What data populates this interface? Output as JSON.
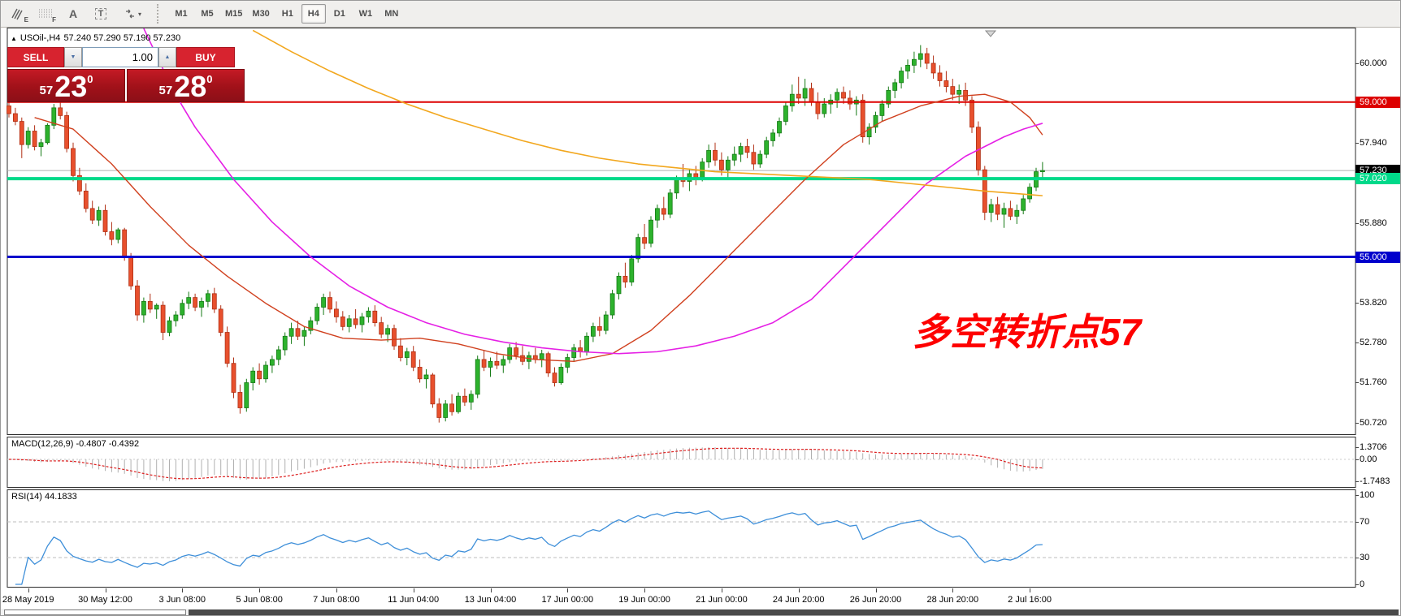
{
  "toolbar": {
    "icon_letters": {
      "e": "E",
      "f": "F",
      "a": "A",
      "t": "T"
    },
    "timeframes": [
      "M1",
      "M5",
      "M15",
      "M30",
      "H1",
      "H4",
      "D1",
      "W1",
      "MN"
    ],
    "active_timeframe": "H4"
  },
  "quote_bar": {
    "collapse_icon": "▲",
    "symbol": "USOil-,H4",
    "ohlc": "57.240 57.290 57.190 57.230"
  },
  "trade_panel": {
    "sell_label": "SELL",
    "buy_label": "BUY",
    "volume": "1.00",
    "spin_down": "▼",
    "spin_up": "▲",
    "sell_price_small": "57",
    "sell_price_big": "23",
    "sell_price_sup": "0",
    "buy_price_small": "57",
    "buy_price_big": "28",
    "buy_price_sup": "0"
  },
  "annotation": {
    "text": "多空转折点57",
    "color": "#fe0000"
  },
  "indicators": {
    "macd_label": "MACD(12,26,9) -0.4807 -0.4392",
    "rsi_label": "RSI(14) 44.1833"
  },
  "axes": {
    "price_ticks": [
      "60.000",
      "57.940",
      "55.880",
      "53.820",
      "52.780",
      "51.760",
      "50.720"
    ],
    "price_badges": [
      {
        "label": "59.000",
        "price": 59.0,
        "bg": "#dd0000",
        "fg": "#ffffff"
      },
      {
        "label": "57.230",
        "price": 57.23,
        "bg": "#000000",
        "fg": "#ffffff"
      },
      {
        "label": "57.020",
        "price": 57.02,
        "bg": "#00d98a",
        "fg": "#ffffff"
      },
      {
        "label": "55.000",
        "price": 55.0,
        "bg": "#0000cc",
        "fg": "#ffffff"
      }
    ],
    "macd_ticks": [
      "1.3706",
      "0.00",
      "-1.7483"
    ],
    "rsi_ticks": [
      "100",
      "70",
      "30",
      "0"
    ],
    "time_labels": [
      "28 May 2019",
      "30 May 12:00",
      "3 Jun 08:00",
      "5 Jun 08:00",
      "7 Jun 08:00",
      "11 Jun 04:00",
      "13 Jun 04:00",
      "17 Jun 00:00",
      "19 Jun 00:00",
      "21 Jun 00:00",
      "24 Jun 20:00",
      "26 Jun 20:00",
      "28 Jun 20:00",
      "2 Jul 16:00"
    ]
  },
  "chart_data": {
    "type": "candlestick",
    "symbol": "USOil-",
    "timeframe": "H4",
    "ylim": [
      50.4,
      60.92
    ],
    "up_color": "#2db22d",
    "down_color": "#e8502d",
    "candles": [
      [
        58.9,
        59.1,
        58.6,
        58.7
      ],
      [
        58.7,
        58.85,
        58.4,
        58.5
      ],
      [
        58.5,
        58.6,
        57.55,
        57.9
      ],
      [
        57.9,
        58.35,
        57.8,
        58.25
      ],
      [
        58.25,
        58.4,
        57.75,
        57.85
      ],
      [
        57.85,
        58.05,
        57.6,
        57.95
      ],
      [
        57.95,
        58.45,
        57.9,
        58.4
      ],
      [
        58.4,
        58.95,
        58.3,
        58.85
      ],
      [
        58.85,
        59.05,
        58.55,
        58.65
      ],
      [
        58.65,
        58.75,
        57.7,
        57.8
      ],
      [
        57.8,
        57.95,
        56.95,
        57.1
      ],
      [
        57.1,
        57.3,
        56.6,
        56.7
      ],
      [
        56.7,
        56.9,
        56.15,
        56.25
      ],
      [
        56.25,
        56.45,
        55.85,
        55.95
      ],
      [
        55.95,
        56.3,
        55.8,
        56.2
      ],
      [
        56.2,
        56.35,
        55.55,
        55.65
      ],
      [
        55.65,
        55.9,
        55.3,
        55.45
      ],
      [
        55.45,
        55.75,
        55.35,
        55.7
      ],
      [
        55.7,
        55.75,
        54.9,
        55.0
      ],
      [
        55.0,
        55.1,
        54.15,
        54.25
      ],
      [
        54.25,
        54.4,
        53.35,
        53.5
      ],
      [
        53.5,
        53.95,
        53.3,
        53.85
      ],
      [
        53.85,
        54.05,
        53.55,
        53.65
      ],
      [
        53.65,
        53.8,
        53.4,
        53.75
      ],
      [
        53.75,
        53.85,
        52.85,
        53.05
      ],
      [
        53.05,
        53.45,
        52.95,
        53.35
      ],
      [
        53.35,
        53.6,
        53.2,
        53.5
      ],
      [
        53.5,
        53.9,
        53.4,
        53.8
      ],
      [
        53.8,
        54.1,
        53.65,
        53.95
      ],
      [
        53.95,
        54.05,
        53.6,
        53.7
      ],
      [
        53.7,
        53.95,
        53.45,
        53.85
      ],
      [
        53.85,
        54.15,
        53.7,
        54.05
      ],
      [
        54.05,
        54.2,
        53.55,
        53.65
      ],
      [
        53.65,
        53.75,
        52.95,
        53.05
      ],
      [
        53.05,
        53.2,
        52.15,
        52.25
      ],
      [
        52.25,
        52.4,
        51.35,
        51.5
      ],
      [
        51.5,
        51.7,
        50.95,
        51.1
      ],
      [
        51.1,
        51.85,
        51.0,
        51.75
      ],
      [
        51.75,
        52.15,
        51.55,
        52.05
      ],
      [
        52.05,
        52.25,
        51.7,
        51.85
      ],
      [
        51.85,
        52.3,
        51.75,
        52.2
      ],
      [
        52.2,
        52.45,
        52.0,
        52.35
      ],
      [
        52.35,
        52.7,
        52.2,
        52.6
      ],
      [
        52.6,
        53.05,
        52.45,
        52.95
      ],
      [
        52.95,
        53.3,
        52.75,
        53.15
      ],
      [
        53.15,
        53.35,
        52.85,
        52.95
      ],
      [
        52.95,
        53.2,
        52.7,
        53.1
      ],
      [
        53.1,
        53.45,
        53.0,
        53.35
      ],
      [
        53.35,
        53.8,
        53.25,
        53.7
      ],
      [
        53.7,
        54.05,
        53.5,
        53.95
      ],
      [
        53.95,
        54.1,
        53.55,
        53.65
      ],
      [
        53.65,
        53.85,
        53.3,
        53.45
      ],
      [
        53.45,
        53.6,
        53.1,
        53.2
      ],
      [
        53.2,
        53.5,
        53.05,
        53.4
      ],
      [
        53.4,
        53.65,
        53.15,
        53.25
      ],
      [
        53.25,
        53.55,
        53.05,
        53.45
      ],
      [
        53.45,
        53.7,
        53.3,
        53.6
      ],
      [
        53.6,
        53.75,
        53.2,
        53.3
      ],
      [
        53.3,
        53.45,
        52.9,
        53.0
      ],
      [
        53.0,
        53.25,
        52.8,
        53.15
      ],
      [
        53.15,
        53.25,
        52.6,
        52.7
      ],
      [
        52.7,
        52.9,
        52.3,
        52.4
      ],
      [
        52.4,
        52.65,
        52.2,
        52.55
      ],
      [
        52.55,
        52.7,
        52.05,
        52.15
      ],
      [
        52.15,
        52.35,
        51.75,
        51.85
      ],
      [
        51.85,
        52.1,
        51.6,
        51.95
      ],
      [
        51.95,
        52.0,
        51.1,
        51.2
      ],
      [
        51.2,
        51.35,
        50.72,
        50.85
      ],
      [
        50.85,
        51.3,
        50.75,
        51.2
      ],
      [
        51.2,
        51.45,
        50.9,
        51.0
      ],
      [
        51.0,
        51.5,
        50.95,
        51.4
      ],
      [
        51.4,
        51.6,
        51.15,
        51.25
      ],
      [
        51.25,
        51.55,
        51.05,
        51.45
      ],
      [
        51.45,
        52.45,
        51.35,
        52.35
      ],
      [
        52.35,
        52.6,
        52.05,
        52.15
      ],
      [
        52.15,
        52.4,
        51.9,
        52.3
      ],
      [
        52.3,
        52.55,
        52.1,
        52.2
      ],
      [
        52.2,
        52.45,
        52.0,
        52.35
      ],
      [
        52.35,
        52.75,
        52.25,
        52.65
      ],
      [
        52.65,
        52.8,
        52.35,
        52.45
      ],
      [
        52.45,
        52.7,
        52.2,
        52.3
      ],
      [
        52.3,
        52.55,
        52.1,
        52.45
      ],
      [
        52.45,
        52.65,
        52.25,
        52.35
      ],
      [
        52.35,
        52.6,
        52.15,
        52.5
      ],
      [
        52.5,
        52.55,
        51.9,
        52.0
      ],
      [
        52.0,
        52.15,
        51.65,
        51.75
      ],
      [
        51.75,
        52.25,
        51.7,
        52.15
      ],
      [
        52.15,
        52.5,
        52.0,
        52.4
      ],
      [
        52.4,
        52.75,
        52.3,
        52.65
      ],
      [
        52.65,
        52.85,
        52.4,
        52.55
      ],
      [
        52.55,
        53.05,
        52.45,
        52.95
      ],
      [
        52.95,
        53.3,
        52.8,
        53.2
      ],
      [
        53.2,
        53.45,
        52.95,
        53.1
      ],
      [
        53.1,
        53.6,
        53.0,
        53.5
      ],
      [
        53.5,
        54.15,
        53.4,
        54.05
      ],
      [
        54.05,
        54.6,
        53.9,
        54.5
      ],
      [
        54.5,
        54.85,
        54.2,
        54.35
      ],
      [
        54.35,
        55.05,
        54.25,
        54.95
      ],
      [
        54.95,
        55.6,
        54.85,
        55.5
      ],
      [
        55.5,
        55.85,
        55.2,
        55.35
      ],
      [
        55.35,
        56.05,
        55.25,
        55.95
      ],
      [
        55.95,
        56.35,
        55.75,
        56.25
      ],
      [
        56.25,
        56.55,
        55.95,
        56.1
      ],
      [
        56.1,
        56.75,
        56.0,
        56.65
      ],
      [
        56.65,
        57.1,
        56.5,
        57.0
      ],
      [
        57.0,
        57.4,
        56.8,
        56.95
      ],
      [
        56.95,
        57.25,
        56.7,
        57.15
      ],
      [
        57.15,
        57.35,
        56.85,
        57.05
      ],
      [
        57.05,
        57.55,
        56.95,
        57.45
      ],
      [
        57.45,
        57.9,
        57.3,
        57.75
      ],
      [
        57.75,
        57.95,
        57.35,
        57.5
      ],
      [
        57.5,
        57.7,
        57.1,
        57.25
      ],
      [
        57.25,
        57.6,
        57.05,
        57.5
      ],
      [
        57.5,
        57.85,
        57.35,
        57.65
      ],
      [
        57.65,
        57.95,
        57.45,
        57.85
      ],
      [
        57.85,
        58.05,
        57.55,
        57.7
      ],
      [
        57.7,
        57.9,
        57.25,
        57.4
      ],
      [
        57.4,
        57.75,
        57.3,
        57.65
      ],
      [
        57.65,
        58.1,
        57.55,
        58.0
      ],
      [
        58.0,
        58.3,
        57.85,
        58.2
      ],
      [
        58.2,
        58.6,
        58.1,
        58.5
      ],
      [
        58.5,
        59.0,
        58.4,
        58.9
      ],
      [
        58.9,
        59.45,
        58.75,
        59.2
      ],
      [
        59.2,
        59.65,
        58.95,
        59.1
      ],
      [
        59.1,
        59.6,
        58.9,
        59.35
      ],
      [
        59.35,
        59.5,
        58.9,
        59.0
      ],
      [
        59.0,
        59.25,
        58.55,
        58.7
      ],
      [
        58.7,
        59.1,
        58.6,
        58.95
      ],
      [
        58.95,
        59.2,
        58.7,
        59.05
      ],
      [
        59.05,
        59.35,
        58.85,
        59.25
      ],
      [
        59.25,
        59.4,
        58.95,
        59.1
      ],
      [
        59.1,
        59.3,
        58.8,
        58.95
      ],
      [
        58.95,
        59.15,
        58.65,
        59.05
      ],
      [
        59.05,
        59.2,
        57.95,
        58.1
      ],
      [
        58.1,
        58.45,
        57.9,
        58.35
      ],
      [
        58.35,
        58.75,
        58.2,
        58.65
      ],
      [
        58.65,
        59.05,
        58.5,
        58.95
      ],
      [
        58.95,
        59.4,
        58.85,
        59.3
      ],
      [
        59.3,
        59.6,
        59.1,
        59.5
      ],
      [
        59.5,
        59.9,
        59.35,
        59.8
      ],
      [
        59.8,
        60.1,
        59.6,
        59.95
      ],
      [
        59.95,
        60.3,
        59.75,
        60.1
      ],
      [
        60.1,
        60.47,
        59.9,
        60.25
      ],
      [
        60.25,
        60.4,
        59.85,
        60.0
      ],
      [
        60.0,
        60.2,
        59.6,
        59.75
      ],
      [
        59.75,
        59.95,
        59.4,
        59.55
      ],
      [
        59.55,
        59.8,
        59.25,
        59.4
      ],
      [
        59.4,
        59.6,
        59.05,
        59.2
      ],
      [
        59.2,
        59.45,
        58.95,
        59.3
      ],
      [
        59.3,
        59.5,
        58.9,
        59.05
      ],
      [
        59.05,
        59.15,
        58.2,
        58.35
      ],
      [
        58.35,
        58.5,
        57.1,
        57.25
      ],
      [
        57.25,
        57.35,
        55.95,
        56.15
      ],
      [
        56.15,
        56.5,
        55.9,
        56.35
      ],
      [
        56.35,
        56.55,
        55.95,
        56.1
      ],
      [
        56.1,
        56.4,
        55.75,
        56.25
      ],
      [
        56.25,
        56.45,
        55.95,
        56.05
      ],
      [
        56.05,
        56.35,
        55.85,
        56.2
      ],
      [
        56.2,
        56.6,
        56.1,
        56.5
      ],
      [
        56.5,
        56.9,
        56.4,
        56.8
      ],
      [
        56.8,
        57.3,
        56.7,
        57.2
      ],
      [
        57.2,
        57.45,
        57.05,
        57.23
      ]
    ],
    "hlines": [
      {
        "price": 59.0,
        "color": "#dd0000",
        "width": 2
      },
      {
        "price": 55.0,
        "color": "#0000cc",
        "width": 3
      },
      {
        "price": 57.02,
        "color": "#00d98a",
        "width": 4
      },
      {
        "price": 57.23,
        "color": "#b0b0b0",
        "width": 1
      }
    ],
    "moving_averages": [
      {
        "name": "ma-red",
        "color": "#d0401e",
        "width": 1.4,
        "points": [
          [
            4,
            58.6
          ],
          [
            10,
            58.3
          ],
          [
            16,
            57.4
          ],
          [
            22,
            56.3
          ],
          [
            28,
            55.3
          ],
          [
            34,
            54.5
          ],
          [
            40,
            53.8
          ],
          [
            46,
            53.2
          ],
          [
            52,
            52.9
          ],
          [
            58,
            52.85
          ],
          [
            64,
            52.9
          ],
          [
            70,
            52.75
          ],
          [
            76,
            52.5
          ],
          [
            82,
            52.35
          ],
          [
            88,
            52.3
          ],
          [
            94,
            52.5
          ],
          [
            100,
            53.1
          ],
          [
            106,
            54.0
          ],
          [
            112,
            55.0
          ],
          [
            118,
            56.0
          ],
          [
            124,
            57.0
          ],
          [
            130,
            57.9
          ],
          [
            136,
            58.5
          ],
          [
            142,
            58.9
          ],
          [
            148,
            59.15
          ],
          [
            152,
            59.2
          ],
          [
            156,
            59.0
          ],
          [
            159,
            58.6
          ],
          [
            161,
            58.15
          ]
        ]
      },
      {
        "name": "ma-magenta",
        "color": "#e520e5",
        "width": 1.6,
        "points": [
          [
            21,
            60.9
          ],
          [
            23,
            60.2
          ],
          [
            25,
            59.5
          ],
          [
            27,
            58.9
          ],
          [
            29,
            58.35
          ],
          [
            35,
            57.0
          ],
          [
            41,
            55.9
          ],
          [
            47,
            55.0
          ],
          [
            53,
            54.25
          ],
          [
            59,
            53.7
          ],
          [
            65,
            53.3
          ],
          [
            71,
            53.0
          ],
          [
            77,
            52.8
          ],
          [
            83,
            52.65
          ],
          [
            89,
            52.55
          ],
          [
            95,
            52.5
          ],
          [
            101,
            52.55
          ],
          [
            107,
            52.7
          ],
          [
            113,
            52.95
          ],
          [
            119,
            53.3
          ],
          [
            125,
            53.9
          ],
          [
            131,
            54.9
          ],
          [
            137,
            55.9
          ],
          [
            143,
            56.9
          ],
          [
            149,
            57.6
          ],
          [
            155,
            58.1
          ],
          [
            158,
            58.3
          ],
          [
            161,
            58.45
          ]
        ]
      },
      {
        "name": "ma-orange",
        "color": "#f2a71e",
        "width": 1.6,
        "points": [
          [
            38,
            60.85
          ],
          [
            44,
            60.3
          ],
          [
            50,
            59.8
          ],
          [
            56,
            59.35
          ],
          [
            62,
            58.95
          ],
          [
            68,
            58.6
          ],
          [
            74,
            58.3
          ],
          [
            80,
            58.0
          ],
          [
            86,
            57.75
          ],
          [
            92,
            57.55
          ],
          [
            98,
            57.4
          ],
          [
            104,
            57.3
          ],
          [
            110,
            57.2
          ],
          [
            116,
            57.15
          ],
          [
            122,
            57.1
          ],
          [
            128,
            57.05
          ],
          [
            134,
            57.0
          ],
          [
            140,
            56.9
          ],
          [
            146,
            56.8
          ],
          [
            152,
            56.7
          ],
          [
            158,
            56.62
          ],
          [
            161,
            56.58
          ]
        ]
      }
    ],
    "macd": {
      "fast": 12,
      "slow": 26,
      "signal": 9,
      "hist_color": "#b0b0b0",
      "signal_color": "#dd2020",
      "axis_max": 1.3706,
      "axis_min": -1.7483
    },
    "rsi": {
      "period": 14,
      "color": "#3e8fd9",
      "levels": [
        70,
        30
      ]
    }
  }
}
